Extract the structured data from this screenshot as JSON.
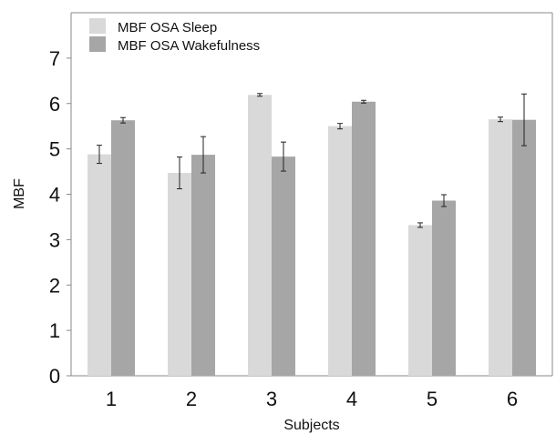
{
  "chart_data": {
    "type": "bar",
    "title": "",
    "xlabel": "Subjects",
    "ylabel": "MBF",
    "categories": [
      "1",
      "2",
      "3",
      "4",
      "5",
      "6"
    ],
    "ylim": [
      0,
      8
    ],
    "yticks": [
      0,
      1,
      2,
      3,
      4,
      5,
      6,
      7
    ],
    "grid": false,
    "legend_position": "top-left",
    "series": [
      {
        "name": "MBF OSA Sleep",
        "color": "#d9d9d9",
        "values": [
          4.88,
          4.47,
          6.19,
          5.5,
          3.32,
          5.65
        ],
        "errors": [
          0.2,
          0.35,
          0.03,
          0.06,
          0.05,
          0.05
        ]
      },
      {
        "name": "MBF OSA Wakefulness",
        "color": "#a6a6a6",
        "values": [
          5.63,
          4.87,
          4.83,
          6.04,
          3.86,
          5.64
        ],
        "errors": [
          0.06,
          0.4,
          0.32,
          0.03,
          0.13,
          0.57
        ]
      }
    ]
  }
}
